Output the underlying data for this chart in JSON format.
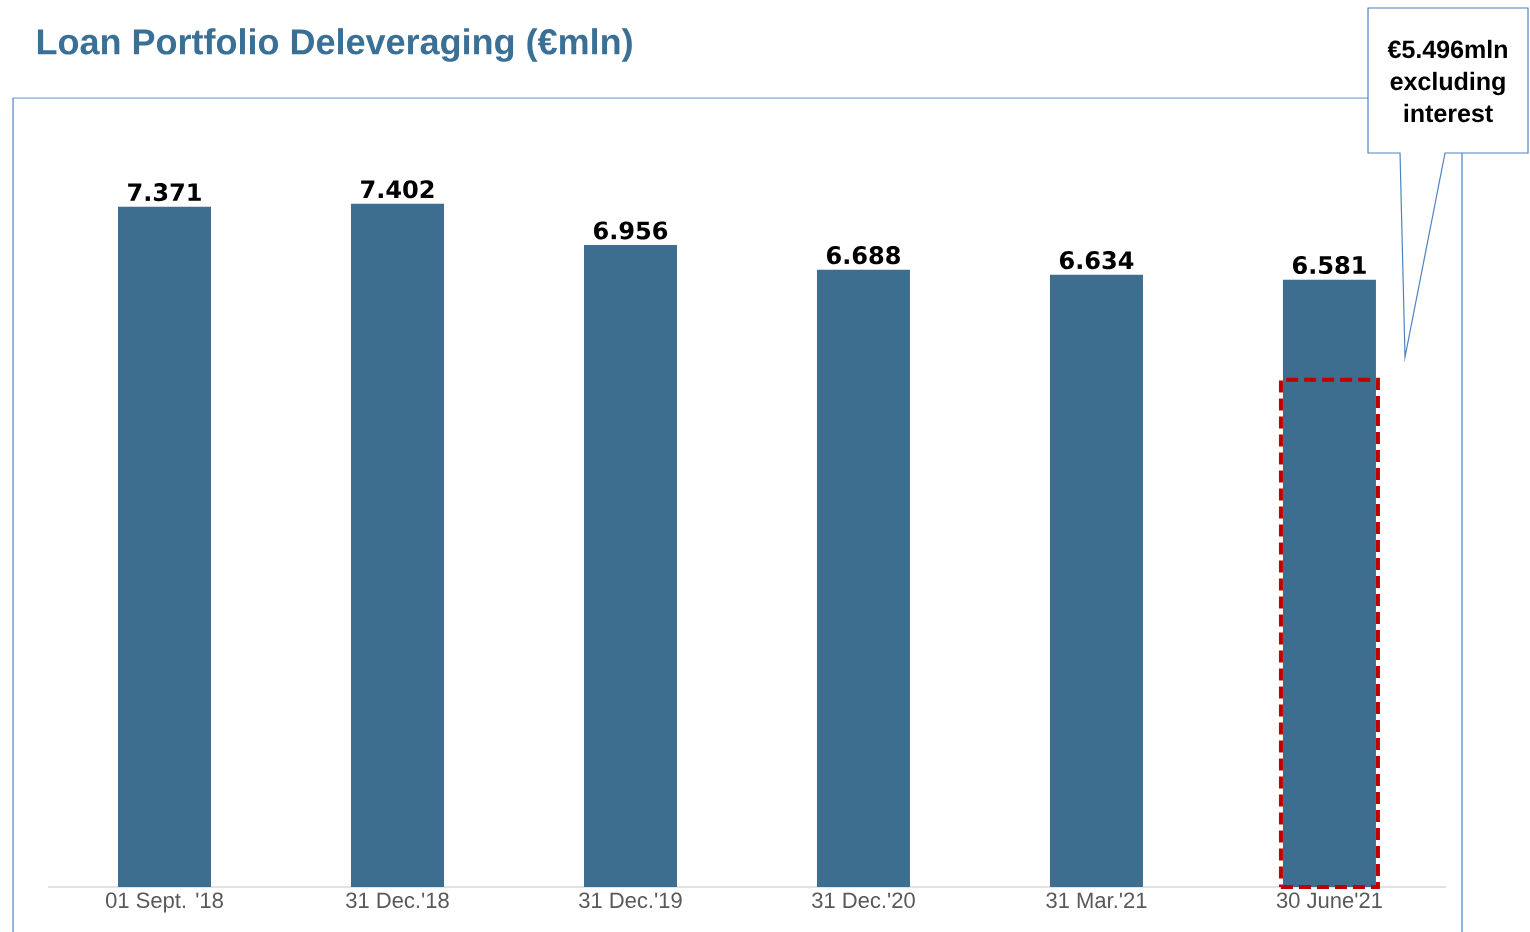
{
  "chart_data": {
    "type": "bar",
    "title": "Loan Portfolio Deleveraging (€mln)",
    "categories": [
      "01 Sept. '18",
      "31 Dec.'18",
      "31 Dec.'19",
      "31 Dec.'20",
      "31 Mar.'21",
      "30 June'21"
    ],
    "series": [
      {
        "color": "#3d6e8f",
        "values": [
          7.371,
          7.402,
          6.956,
          6.688,
          6.634,
          6.581
        ],
        "value_labels": [
          "7.371",
          "7.402",
          "6.956",
          "6.688",
          "6.634",
          "6.581"
        ]
      },
      {
        "color": "#c00000",
        "line_style": "dashed",
        "values": [
          null,
          null,
          null,
          null,
          null,
          5.496
        ]
      }
    ],
    "annotations": [
      "€5.496mln excluding interest"
    ]
  }
}
